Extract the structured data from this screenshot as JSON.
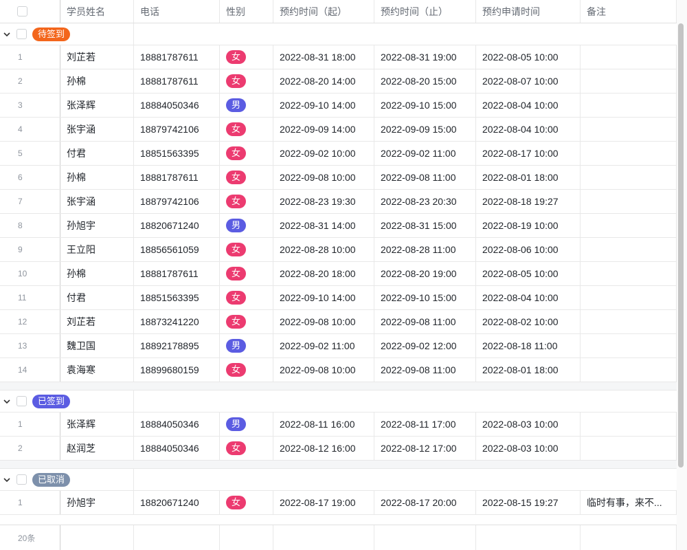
{
  "header": {
    "columns": [
      "学员姓名",
      "电话",
      "性别",
      "预约时间（起）",
      "预约时间（止）",
      "预约申请时间",
      "备注"
    ]
  },
  "gender_colors": {
    "女": "#ec3b70",
    "男": "#5b5ce2"
  },
  "groups": [
    {
      "label": "待签到",
      "color": "#f3661c",
      "rows": [
        {
          "index": 1,
          "name": "刘芷若",
          "phone": "18881787611",
          "gender": "女",
          "start": "2022-08-31 18:00",
          "end": "2022-08-31 19:00",
          "apply": "2022-08-05 10:00"
        },
        {
          "index": 2,
          "name": "孙棉",
          "phone": "18881787611",
          "gender": "女",
          "start": "2022-08-20 14:00",
          "end": "2022-08-20 15:00",
          "apply": "2022-08-07 10:00"
        },
        {
          "index": 3,
          "name": "张泽辉",
          "phone": "18884050346",
          "gender": "男",
          "start": "2022-09-10 14:00",
          "end": "2022-09-10 15:00",
          "apply": "2022-08-04 10:00"
        },
        {
          "index": 4,
          "name": "张宇涵",
          "phone": "18879742106",
          "gender": "女",
          "start": "2022-09-09 14:00",
          "end": "2022-09-09 15:00",
          "apply": "2022-08-04 10:00"
        },
        {
          "index": 5,
          "name": "付君",
          "phone": "18851563395",
          "gender": "女",
          "start": "2022-09-02 10:00",
          "end": "2022-09-02 11:00",
          "apply": "2022-08-17 10:00"
        },
        {
          "index": 6,
          "name": "孙棉",
          "phone": "18881787611",
          "gender": "女",
          "start": "2022-09-08 10:00",
          "end": "2022-09-08 11:00",
          "apply": "2022-08-01 18:00"
        },
        {
          "index": 7,
          "name": "张宇涵",
          "phone": "18879742106",
          "gender": "女",
          "start": "2022-08-23 19:30",
          "end": "2022-08-23 20:30",
          "apply": "2022-08-18 19:27"
        },
        {
          "index": 8,
          "name": "孙旭宇",
          "phone": "18820671240",
          "gender": "男",
          "start": "2022-08-31 14:00",
          "end": "2022-08-31 15:00",
          "apply": "2022-08-19 10:00"
        },
        {
          "index": 9,
          "name": "王立阳",
          "phone": "18856561059",
          "gender": "女",
          "start": "2022-08-28 10:00",
          "end": "2022-08-28 11:00",
          "apply": "2022-08-06 10:00"
        },
        {
          "index": 10,
          "name": "孙棉",
          "phone": "18881787611",
          "gender": "女",
          "start": "2022-08-20 18:00",
          "end": "2022-08-20 19:00",
          "apply": "2022-08-05 10:00"
        },
        {
          "index": 11,
          "name": "付君",
          "phone": "18851563395",
          "gender": "女",
          "start": "2022-09-10 14:00",
          "end": "2022-09-10 15:00",
          "apply": "2022-08-04 10:00"
        },
        {
          "index": 12,
          "name": "刘芷若",
          "phone": "18873241220",
          "gender": "女",
          "start": "2022-09-08 10:00",
          "end": "2022-09-08 11:00",
          "apply": "2022-08-02 10:00"
        },
        {
          "index": 13,
          "name": "魏卫国",
          "phone": "18892178895",
          "gender": "男",
          "start": "2022-09-02 11:00",
          "end": "2022-09-02 12:00",
          "apply": "2022-08-18 11:00"
        },
        {
          "index": 14,
          "name": "袁海寒",
          "phone": "18899680159",
          "gender": "女",
          "start": "2022-09-08 10:00",
          "end": "2022-09-08 11:00",
          "apply": "2022-08-01 18:00"
        }
      ]
    },
    {
      "label": "已签到",
      "color": "#5b5ce2",
      "rows": [
        {
          "index": 1,
          "name": "张泽辉",
          "phone": "18884050346",
          "gender": "男",
          "start": "2022-08-11 16:00",
          "end": "2022-08-11 17:00",
          "apply": "2022-08-03 10:00"
        },
        {
          "index": 2,
          "name": "赵润芝",
          "phone": "18884050346",
          "gender": "女",
          "start": "2022-08-12 16:00",
          "end": "2022-08-12 17:00",
          "apply": "2022-08-03 10:00"
        }
      ]
    },
    {
      "label": "已取消",
      "color": "#7d90ab",
      "rows": [
        {
          "index": 1,
          "name": "孙旭宇",
          "phone": "18820671240",
          "gender": "女",
          "start": "2022-08-17 19:00",
          "end": "2022-08-17 20:00",
          "apply": "2022-08-15 19:27",
          "note": "临时有事，来不..."
        }
      ]
    }
  ],
  "footer": {
    "count": "20条"
  }
}
